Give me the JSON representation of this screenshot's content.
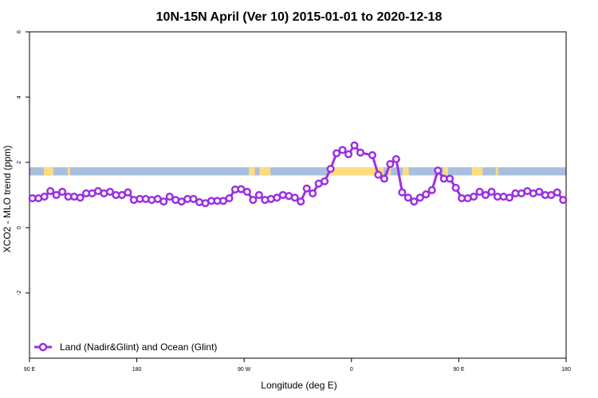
{
  "chart_data": {
    "type": "line",
    "title": "10N-15N April (Ver 10)   2015-01-01 to 2020-12-18",
    "xlabel": "Longitude (deg E)",
    "ylabel": "XCO2 - MLO trend (ppm)",
    "xlim": [
      0,
      450
    ],
    "ylim": [
      -4,
      6
    ],
    "x_ticks": [
      {
        "value": 0,
        "label": "90 E"
      },
      {
        "value": 90,
        "label": "180"
      },
      {
        "value": 180,
        "label": "90 W"
      },
      {
        "value": 270,
        "label": "0"
      },
      {
        "value": 360,
        "label": "90 E"
      },
      {
        "value": 450,
        "label": "180"
      }
    ],
    "y_ticks": [
      {
        "value": -2,
        "label": "-2"
      },
      {
        "value": 0,
        "label": "0"
      },
      {
        "value": 2,
        "label": "2"
      },
      {
        "value": 4,
        "label": "4"
      },
      {
        "value": 6,
        "label": "6"
      }
    ],
    "legend": {
      "position": "bottom-left",
      "entries": [
        "Land (Nadir&Glint) and Ocean (Glint)"
      ]
    },
    "colors": {
      "series": "#9b30e0",
      "ocean_band": "#a9bfdf",
      "land_band": "#fddc80"
    },
    "band": {
      "y_min": 1.6,
      "y_max": 1.85
    },
    "land_segments": [
      [
        12,
        20
      ],
      [
        32,
        34
      ],
      [
        184,
        189
      ],
      [
        193,
        202
      ],
      [
        250,
        297
      ],
      [
        301,
        303
      ],
      [
        313,
        318
      ],
      [
        347,
        351
      ],
      [
        371,
        380
      ],
      [
        391,
        393
      ]
    ],
    "series": [
      {
        "name": "Land (Nadir&Glint) and Ocean (Glint)",
        "x": [
          2.5,
          7.5,
          12.5,
          17.5,
          22.5,
          27.5,
          32.5,
          37.5,
          42.5,
          47.5,
          52.5,
          57.5,
          62.5,
          67.5,
          72.5,
          77.5,
          82.5,
          87.5,
          92.5,
          97.5,
          102.5,
          107.5,
          112.5,
          117.5,
          122.5,
          127.5,
          132.5,
          137.5,
          142.5,
          147.5,
          152.5,
          157.5,
          162.5,
          167.5,
          172.5,
          177.5,
          182.5,
          187.5,
          192.5,
          197.5,
          202.5,
          207.5,
          212.5,
          217.5,
          222.5,
          227.5,
          232.5,
          237.5,
          242.5,
          247.5,
          252.5,
          257.5,
          262.5,
          267.5,
          272.5,
          277.5,
          287.5,
          292.5,
          297.5,
          302.5,
          307.5,
          312.5,
          317.5,
          322.5,
          327.5,
          332.5,
          337.5,
          342.5,
          347.5,
          352.5,
          357.5,
          362.5,
          367.5,
          372.5,
          377.5,
          382.5,
          387.5,
          392.5,
          397.5,
          402.5,
          407.5,
          412.5,
          417.5,
          422.5,
          427.5,
          432.5,
          437.5,
          442.5,
          447.5
        ],
        "y": [
          0.9,
          0.9,
          0.95,
          1.12,
          1.0,
          1.1,
          0.95,
          0.95,
          0.92,
          1.05,
          1.05,
          1.12,
          1.05,
          1.1,
          1.0,
          1.0,
          1.08,
          0.85,
          0.88,
          0.88,
          0.85,
          0.88,
          0.8,
          0.95,
          0.85,
          0.8,
          0.88,
          0.88,
          0.78,
          0.75,
          0.82,
          0.82,
          0.82,
          0.9,
          1.17,
          1.18,
          1.1,
          0.85,
          1.0,
          0.85,
          0.88,
          0.92,
          1.0,
          0.97,
          0.92,
          0.8,
          1.2,
          1.05,
          1.35,
          1.42,
          1.8,
          2.28,
          2.38,
          2.25,
          2.52,
          2.3,
          2.22,
          1.62,
          1.5,
          1.95,
          2.1,
          1.08,
          0.92,
          0.8,
          0.92,
          1.02,
          1.15,
          1.75,
          1.5,
          1.5,
          1.22,
          0.9,
          0.9,
          0.95,
          1.1,
          1.0,
          1.1,
          0.95,
          0.95,
          0.92,
          1.05,
          1.05,
          1.12,
          1.05,
          1.1,
          1.0,
          1.0,
          1.08,
          0.85
        ]
      }
    ]
  }
}
